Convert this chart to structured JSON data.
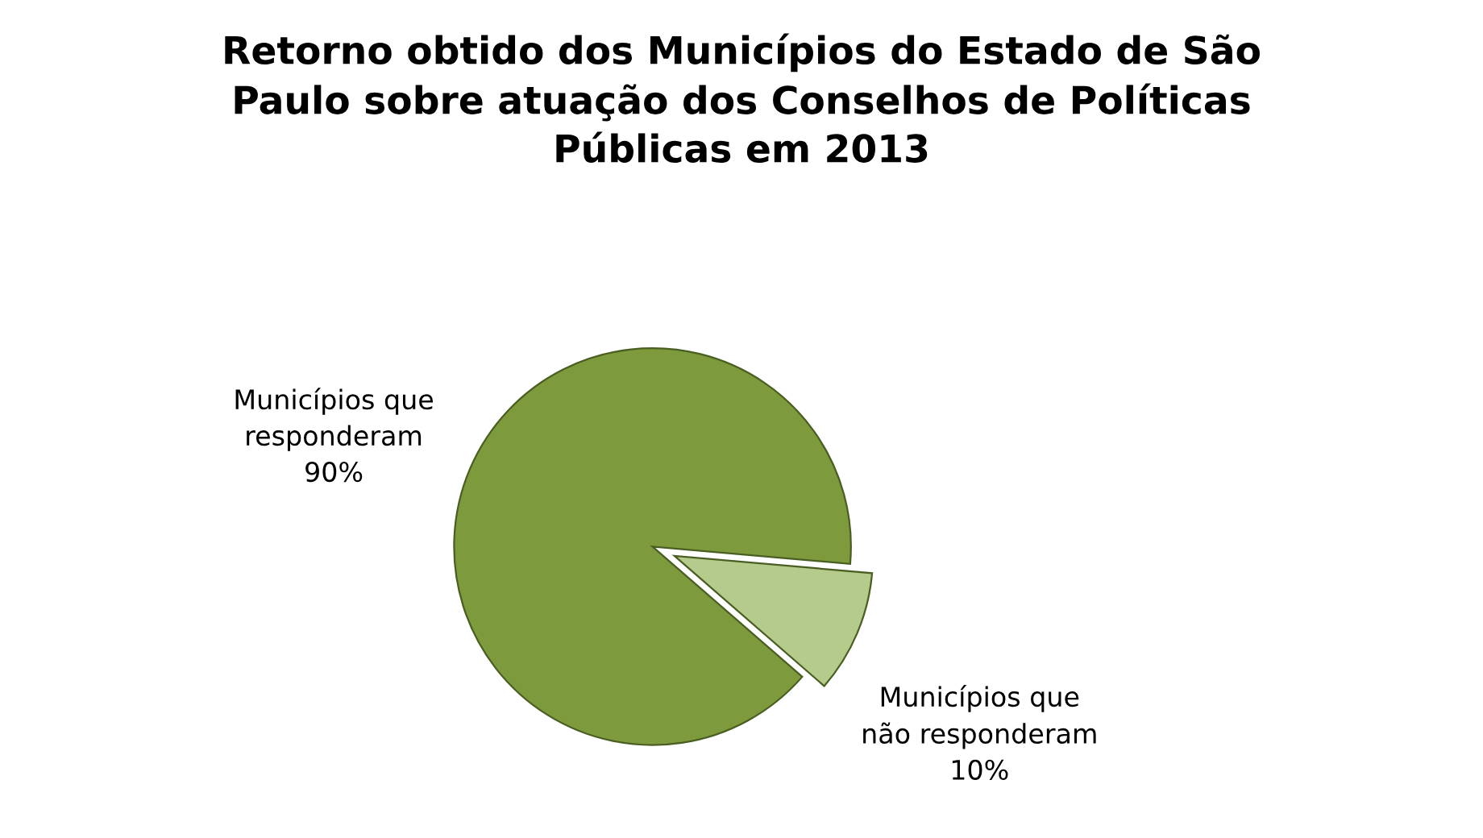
{
  "chart_data": {
    "type": "pie",
    "title": "Retorno obtido dos Municípios do Estado de São\nPaulo sobre atuação dos Conselhos de Políticas\nPúblicas em 2013",
    "categories": [
      "Municípios que\nresponderam",
      "Municípios que\nnão responderam"
    ],
    "values": [
      90,
      10
    ],
    "colors": [
      "#7d9b3c",
      "#b5cb8c"
    ],
    "value_labels": [
      "90%",
      "10%"
    ],
    "legend": false
  }
}
